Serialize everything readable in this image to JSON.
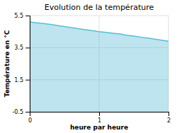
{
  "chart_data": {
    "type": "area",
    "title": "Evolution de la température",
    "xlabel": "heure par heure",
    "ylabel": "Température en °C",
    "x": [
      0,
      0.1,
      0.2,
      0.3,
      0.4,
      0.5,
      0.6,
      0.7,
      0.8,
      0.9,
      1.0,
      1.1,
      1.2,
      1.3,
      1.4,
      1.5,
      1.6,
      1.7,
      1.8,
      1.9,
      2.0
    ],
    "values": [
      5.1,
      5.05,
      5.0,
      4.95,
      4.88,
      4.82,
      4.75,
      4.68,
      4.62,
      4.56,
      4.5,
      4.45,
      4.4,
      4.35,
      4.28,
      4.22,
      4.16,
      4.1,
      4.03,
      3.97,
      3.9
    ],
    "color": "#5bbcd6",
    "xlim": [
      0,
      2
    ],
    "ylim": [
      -0.5,
      5.5
    ],
    "xticks": [
      0,
      1,
      2
    ],
    "yticks": [
      -0.5,
      1.5,
      3.5,
      5.5
    ],
    "grid": true
  }
}
